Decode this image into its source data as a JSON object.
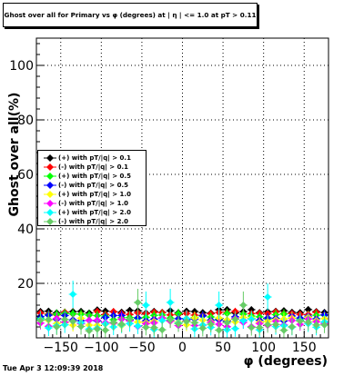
{
  "title": "Ghost over all for Primary vs φ (degrees) at | η | <= 1.0 at pT > 0.11",
  "timestamp": "Tue Apr  3 12:09:39 2018",
  "chart_data": {
    "type": "scatter",
    "title": "Ghost over all for Primary vs φ (degrees) at | η | <= 1.0 at pT > 0.11",
    "xlabel": "φ (degrees)",
    "ylabel": "Ghost over all(%)",
    "xlim": [
      -180,
      180
    ],
    "ylim": [
      0,
      110
    ],
    "x_ticks": [
      -150,
      -100,
      -50,
      0,
      50,
      100,
      150
    ],
    "y_ticks": [
      20,
      40,
      60,
      80,
      100
    ],
    "grid": true,
    "legend_position": "left-middle",
    "series": [
      {
        "name": "(+) with pT/|q| > 0.1",
        "color": "#000000",
        "marker": "diamond",
        "center": 9.7,
        "spread": 0.7,
        "err": 1.2
      },
      {
        "name": "(-) with pT/|q| > 0.1",
        "color": "#ff0000",
        "marker": "diamond",
        "center": 9.0,
        "spread": 0.8,
        "err": 1.3
      },
      {
        "name": "(+) with pT/|q| > 0.5",
        "color": "#00ff00",
        "marker": "diamond",
        "center": 7.8,
        "spread": 1.2,
        "err": 1.8
      },
      {
        "name": "(-) with pT/|q| > 0.5",
        "color": "#0000ff",
        "marker": "diamond",
        "center": 7.4,
        "spread": 1.2,
        "err": 1.8
      },
      {
        "name": "(+) with pT/|q| > 1.0",
        "color": "#ffff00",
        "marker": "diamond",
        "center": 6.0,
        "spread": 1.6,
        "err": 2.3
      },
      {
        "name": "(-) with pT/|q| > 1.0",
        "color": "#ff00ff",
        "marker": "diamond",
        "center": 5.6,
        "spread": 1.6,
        "err": 2.3
      },
      {
        "name": "(+) with pT/|q| > 2.0",
        "color": "#00ffff",
        "marker": "diamond",
        "center": 5.2,
        "spread": 2.4,
        "err": 3.0
      },
      {
        "name": "(-) with pT/|q| > 2.0",
        "color": "#66cc66",
        "marker": "diamond",
        "center": 4.6,
        "spread": 2.4,
        "err": 3.0
      }
    ],
    "x_values": [
      -175,
      -165,
      -155,
      -145,
      -135,
      -125,
      -115,
      -105,
      -95,
      -85,
      -75,
      -65,
      -55,
      -45,
      -35,
      -25,
      -15,
      -5,
      5,
      15,
      25,
      35,
      45,
      55,
      65,
      75,
      85,
      95,
      105,
      115,
      125,
      135,
      145,
      155,
      165,
      175
    ],
    "highlight_points": [
      {
        "series": 6,
        "x": -135,
        "y": 16
      },
      {
        "series": 6,
        "x": -45,
        "y": 12
      },
      {
        "series": 6,
        "x": -15,
        "y": 13
      },
      {
        "series": 6,
        "x": 45,
        "y": 12
      },
      {
        "series": 6,
        "x": 105,
        "y": 15
      },
      {
        "series": 7,
        "x": -55,
        "y": 13
      },
      {
        "series": 7,
        "x": 75,
        "y": 12
      }
    ]
  }
}
